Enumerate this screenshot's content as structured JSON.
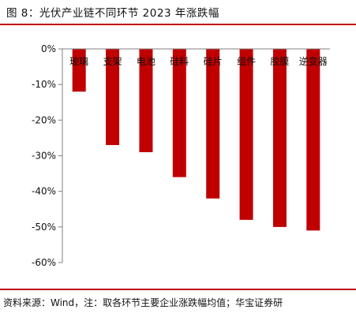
{
  "figure": {
    "caption": "图 8：光伏产业链不同环节 2023 年涨跌幅",
    "source": "资料来源：Wind，注：取各环节主要企业涨跌幅均值；华宝证券研"
  },
  "colors": {
    "accent": "#c00000",
    "axis": "#808080",
    "text": "#111111"
  },
  "chart_data": {
    "type": "bar",
    "title": "",
    "xlabel": "",
    "ylabel": "",
    "categories": [
      "玻璃",
      "支架",
      "电池",
      "硅料",
      "硅片",
      "组件",
      "胶膜",
      "逆变器"
    ],
    "values": [
      -12,
      -27,
      -29,
      -36,
      -42,
      -48,
      -50,
      -51
    ],
    "ylim": [
      -60,
      0
    ],
    "yticks": [
      "0%",
      "-10%",
      "-20%",
      "-30%",
      "-40%",
      "-50%",
      "-60%"
    ],
    "unit": "%",
    "grid": false,
    "legend": "none",
    "bar_color": "#c00000"
  }
}
